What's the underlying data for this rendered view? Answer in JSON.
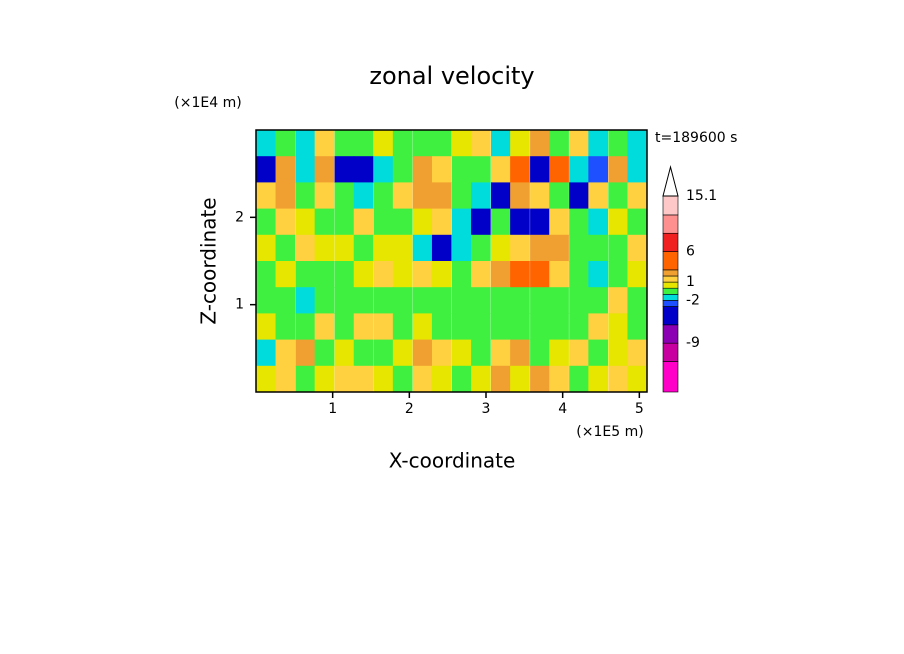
{
  "chart_data": {
    "type": "contour",
    "title": "zonal velocity",
    "time_label": "t=189600 s",
    "x_label": "X-coordinate",
    "y_label": "Z-coordinate",
    "x_unit": "(×1E5 m)",
    "y_unit": "(×1E4 m)",
    "xlim": [
      0,
      5.1
    ],
    "ylim": [
      0,
      3
    ],
    "xticks": [
      1,
      2,
      3,
      4,
      5
    ],
    "yticks": [
      1,
      2
    ],
    "x": [
      0.13,
      0.38,
      0.64,
      0.89,
      1.15,
      1.4,
      1.66,
      1.91,
      2.17,
      2.42,
      2.68,
      2.93,
      3.19,
      3.44,
      3.7,
      3.95,
      4.21,
      4.46,
      4.72,
      4.97
    ],
    "y": [
      2.85,
      2.55,
      2.25,
      1.95,
      1.65,
      1.35,
      1.05,
      0.75,
      0.45,
      0.15
    ],
    "z": [
      [
        -2,
        -1,
        -2,
        1,
        -1,
        -0.5,
        0.5,
        -0.5,
        -1,
        -0.5,
        0.5,
        1.5,
        -2,
        0.5,
        2,
        -0.5,
        1.5,
        -2,
        -0.5,
        -2
      ],
      [
        -4,
        2,
        -2,
        2.5,
        -4,
        -5,
        -2,
        -0.5,
        2.5,
        1.5,
        -0.5,
        -1,
        1.5,
        3.5,
        -5,
        3,
        -1.5,
        -3,
        2,
        -1.5
      ],
      [
        1.5,
        2.5,
        -0.5,
        1.5,
        -0.5,
        -2,
        -0.5,
        1.5,
        2.5,
        2.5,
        -0.5,
        -2,
        -4,
        2.5,
        1.5,
        -1,
        -4,
        1,
        -0.5,
        1
      ],
      [
        -0.5,
        1,
        0.5,
        -1,
        -0.5,
        1.5,
        -0.5,
        -1,
        0.5,
        1.5,
        -2,
        -4,
        -0.5,
        -4,
        -4,
        1.5,
        -1,
        -2,
        0.5,
        -0.5
      ],
      [
        0.5,
        -0.5,
        1,
        0.5,
        0.5,
        -0.5,
        0.5,
        0.5,
        -2,
        -4,
        -2,
        -0.5,
        0.5,
        1,
        2,
        2.5,
        -0.5,
        -1,
        -0.5,
        1.5
      ],
      [
        -0.5,
        0.5,
        -0.5,
        -1,
        -0.5,
        0.5,
        1,
        0.5,
        1,
        0.5,
        -0.5,
        1,
        2,
        3.5,
        3.5,
        1.5,
        -0.5,
        -2,
        -0.5,
        0.5
      ],
      [
        -0.5,
        -0.5,
        -2,
        -0.5,
        -0.5,
        -0.5,
        -0.5,
        -0.5,
        -0.5,
        -0.5,
        -0.5,
        -0.5,
        -0.5,
        -0.5,
        -1,
        -0.5,
        -0.5,
        -0.5,
        1,
        -0.5
      ],
      [
        0.5,
        -0.5,
        -0.5,
        1,
        -0.5,
        1,
        1.5,
        -0.5,
        0.5,
        -0.5,
        -0.5,
        -0.5,
        -1,
        -0.5,
        -0.5,
        -0.5,
        -0.5,
        1,
        0.5,
        -0.5
      ],
      [
        -2,
        1,
        2,
        -0.5,
        0.5,
        -0.5,
        -1,
        0.5,
        2.5,
        1.5,
        0.5,
        -0.5,
        1,
        2,
        -0.5,
        0.5,
        1,
        -0.5,
        0.5,
        1.5
      ],
      [
        0.5,
        1,
        -0.5,
        0.5,
        1.5,
        1,
        0.5,
        -0.5,
        1,
        0.5,
        -0.5,
        0.5,
        2,
        0.5,
        2,
        1,
        -0.5,
        0.5,
        1,
        0.5
      ]
    ],
    "colorbar": {
      "levels": [
        -17,
        -12,
        -9,
        -6,
        -3,
        -2,
        -1,
        0,
        1,
        2,
        3,
        6,
        9,
        12,
        15.1
      ],
      "colors": [
        "#ff00c8",
        "#c800a0",
        "#8c00b4",
        "#0000c8",
        "#1e50ff",
        "#00dcdc",
        "#40f040",
        "#e6e600",
        "#ffd040",
        "#f0a030",
        "#ff6400",
        "#f02020",
        "#ff9090",
        "#ffc8c8"
      ],
      "ticks": [
        15.1,
        6,
        1,
        -2,
        -9
      ]
    }
  }
}
